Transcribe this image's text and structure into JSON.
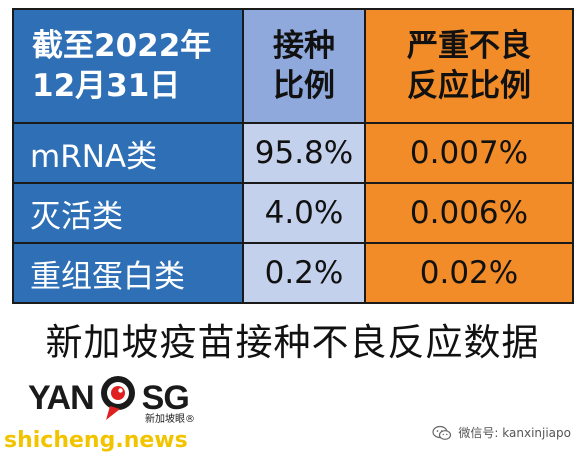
{
  "table": {
    "header": {
      "col1_line1": "截至2022年",
      "col1_line2": "12月31日",
      "col2_line1": "接种",
      "col2_line2": "比例",
      "col3_line1": "严重不良",
      "col3_line2": "反应比例"
    },
    "rows": [
      {
        "name": "mRNA类",
        "rate": "95.8%",
        "adverse": "0.007%"
      },
      {
        "name": "灭活类",
        "rate": "4.0%",
        "adverse": "0.006%"
      },
      {
        "name": "重组蛋白类",
        "rate": "0.2%",
        "adverse": "0.02%"
      }
    ]
  },
  "caption": "新加坡疫苗接种不良反应数据",
  "logo": {
    "left": "YAN",
    "right": "SG",
    "sub": "新加坡眼®"
  },
  "watermark_site": "shicheng.news",
  "wechat": {
    "text": "微信号: kanxinjiapo",
    "icon": "wechat-icon"
  },
  "colors": {
    "blue": "#2e6fb6",
    "light_blue": "#8fa9dc",
    "orange": "#f28c28",
    "logo_red": "#e02020"
  }
}
